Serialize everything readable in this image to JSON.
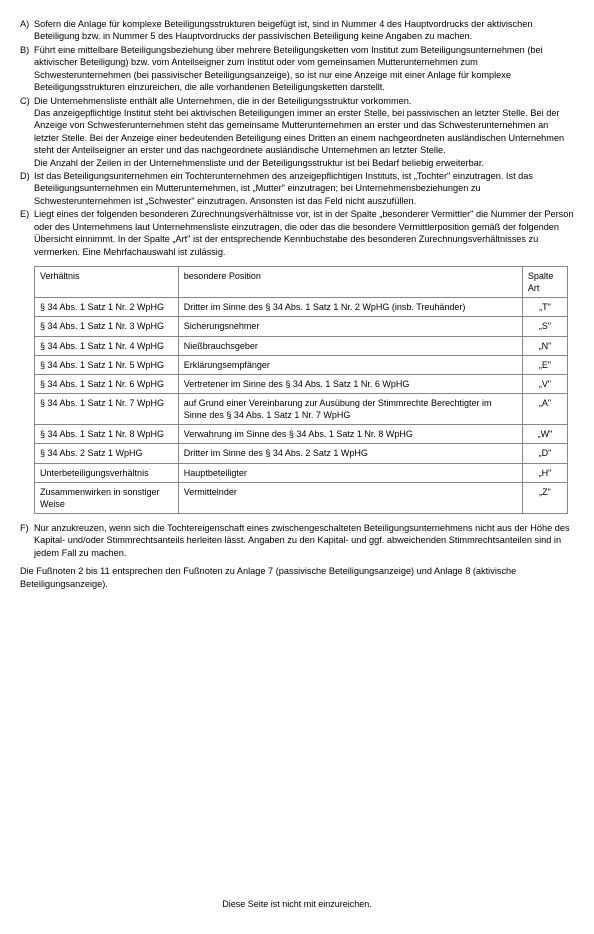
{
  "items": {
    "A": {
      "letter": "A)",
      "text": "Sofern die Anlage für komplexe Beteiligungsstrukturen beigefügt ist, sind in Nummer 4 des Hauptvordrucks der aktivischen Beteiligung bzw. in Nummer 5 des Hauptvordrucks der passivischen Beteiligung keine Angaben zu machen."
    },
    "B": {
      "letter": "B)",
      "text": "Führt eine mittelbare Beteiligungsbeziehung über mehrere Beteiligungsketten vom Institut zum Beteiligungsunternehmen (bei aktivischer Beteiligung) bzw. vom Anteilseigner zum Institut oder vom gemeinsamen Mutterunternehmen zum Schwesterunternehmen (bei passivischer Beteiligungsanzeige), so ist nur eine Anzeige mit einer Anlage für komplexe Beteiligungsstrukturen einzureichen, die alle vorhandenen Beteiligungsketten darstellt."
    },
    "C": {
      "letter": "C)",
      "p1": "Die Unternehmensliste enthält alle Unternehmen, die in der Beteiligungsstruktur vorkommen.",
      "p2": "Das anzeigepflichtige Institut steht bei aktivischen Beteiligungen immer an erster Stelle, bei passivischen an letzter Stelle. Bei der Anzeige von Schwesterunternehmen steht das gemeinsame Mutterunternehmen an erster und das Schwesterunternehmen an letzter Stelle. Bei der Anzeige einer bedeutenden Beteiligung eines Dritten an einem nachgeordneten ausländischen Unternehmen steht der Anteilseigner an erster und das nachgeordnete ausländische Unternehmen an letzter Stelle.",
      "p3": "Die Anzahl der Zeilen in der Unternehmensliste und der Beteiligungsstruktur ist bei Bedarf beliebig erweiterbar."
    },
    "D": {
      "letter": "D)",
      "text": "Ist das Beteiligungsunternehmen ein Tochterunternehmen des anzeigepflichtigen Instituts, ist „Tochter\" einzutragen. Ist das Beteiligungsunternehmen ein Mutterunternehmen, ist „Mutter\" einzutragen; bei Unternehmensbeziehungen zu Schwesterunternehmen ist „Schwester\" einzutragen. Ansonsten ist das Feld nicht auszufüllen."
    },
    "E": {
      "letter": "E)",
      "text": "Liegt eines der folgenden besonderen Zurechnungsverhältnisse vor, ist in der Spalte „besonderer Vermittler\" die Nummer der Person oder des Unternehmens laut Unternehmensliste einzutragen, die oder das die besondere Vermittlerposition gemäß der folgenden Übersicht einnimmt. In der Spalte „Art\" ist der entsprechende Kennbuchstabe des besonderen Zurechnungsverhältnisses zu vermerken. Eine Mehrfachauswahl ist zulässig."
    },
    "F": {
      "letter": "F)",
      "text": "Nur anzukreuzen, wenn sich die Tochtereigenschaft eines zwischengeschalteten Beteiligungsunternehmens nicht aus der Höhe des Kapital- und/oder Stimmrechtsanteils herleiten lässt. Angaben zu den Kapital- und ggf. abweichenden Stimmrechtsanteilen sind in jedem Fall zu machen."
    }
  },
  "table": {
    "headers": {
      "c1": "Verhältnis",
      "c2": "besondere Position",
      "c3": "Spalte Art"
    },
    "rows": [
      {
        "c1": "§ 34 Abs. 1 Satz 1 Nr. 2 WpHG",
        "c2": "Dritter im Sinne des § 34 Abs. 1 Satz 1 Nr. 2 WpHG (insb. Treuhänder)",
        "c3": "„T\""
      },
      {
        "c1": "§ 34 Abs. 1 Satz 1 Nr. 3 WpHG",
        "c2": "Sicherungsnehmer",
        "c3": "„S\""
      },
      {
        "c1": "§ 34 Abs. 1 Satz 1 Nr. 4 WpHG",
        "c2": "Nießbrauchsgeber",
        "c3": "„N\""
      },
      {
        "c1": "§ 34 Abs. 1 Satz 1 Nr. 5 WpHG",
        "c2": "Erklärungsempfänger",
        "c3": "„E\""
      },
      {
        "c1": "§ 34 Abs. 1 Satz 1 Nr. 6 WpHG",
        "c2": "Vertretener im Sinne des § 34 Abs. 1 Satz 1 Nr. 6 WpHG",
        "c3": "„V\""
      },
      {
        "c1": "§ 34 Abs. 1 Satz 1 Nr. 7 WpHG",
        "c2": "auf Grund einer Vereinbarung zur Ausübung der Stimmrechte Berechtigter im Sinne des § 34 Abs. 1 Satz 1 Nr. 7 WpHG",
        "c3": "„A\""
      },
      {
        "c1": "§ 34 Abs. 1 Satz 1 Nr. 8 WpHG",
        "c2": "Verwahrung im Sinne des § 34 Abs. 1 Satz 1 Nr. 8 WpHG",
        "c3": "„W\""
      },
      {
        "c1": "§ 34 Abs. 2 Satz 1 WpHG",
        "c2": "Dritter im Sinne des § 34 Abs. 2 Satz 1 WpHG",
        "c3": "„D\""
      },
      {
        "c1": "Unterbeteiligungsverhältnis",
        "c2": "Hauptbeteiligter",
        "c3": "„H\""
      },
      {
        "c1": "Zusammenwirken in sonstiger Weise",
        "c2": "Vermittelnder",
        "c3": "„Z\""
      }
    ]
  },
  "footnote_para": "Die Fußnoten 2 bis 11 entsprechen den Fußnoten zu Anlage 7 (passivische Beteiligungsanzeige) und Anlage 8 (aktivische Beteiligungsanzeige).",
  "footer": "Diese Seite ist nicht mit einzureichen."
}
